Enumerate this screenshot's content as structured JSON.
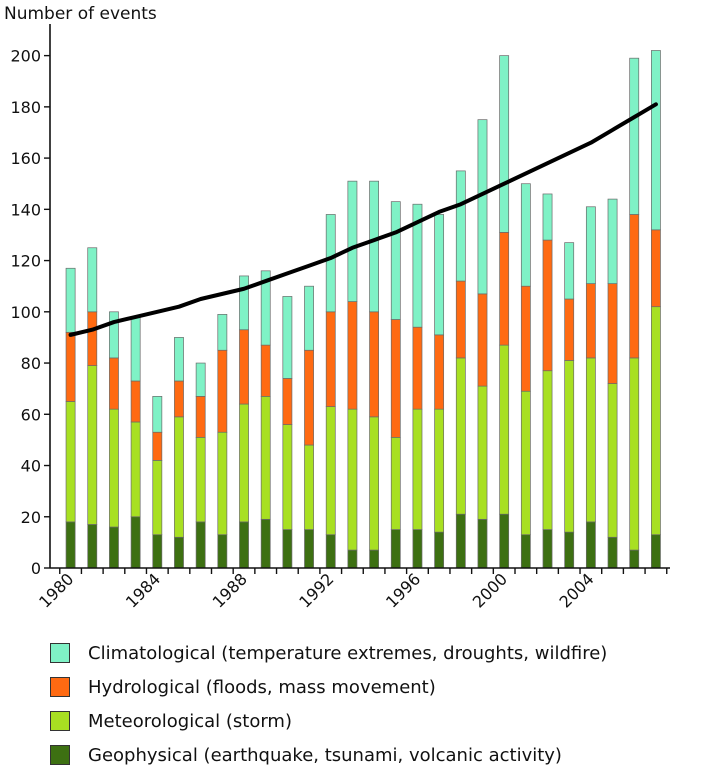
{
  "chart_data": {
    "type": "bar",
    "stacked": true,
    "ylabel": "Number of events",
    "ylim": [
      0,
      210
    ],
    "yticks": [
      0,
      20,
      40,
      60,
      80,
      100,
      120,
      140,
      160,
      180,
      200
    ],
    "xtick_labels": [
      "1980",
      "1984",
      "1988",
      "1992",
      "1996",
      "2000",
      "2004"
    ],
    "categories": [
      "1980",
      "1981",
      "1982",
      "1983",
      "1984",
      "1985",
      "1986",
      "1987",
      "1988",
      "1989",
      "1990",
      "1991",
      "1992",
      "1993",
      "1994",
      "1995",
      "1996",
      "1997",
      "1998",
      "1999",
      "2000",
      "2001",
      "2002",
      "2003",
      "2004",
      "2005",
      "2006",
      "2007"
    ],
    "grid": false,
    "legend_position": "bottom",
    "series": [
      {
        "name": "Geophysical (earthquake, tsunami, volcanic activity)",
        "color": "#3d7012",
        "values": [
          18,
          17,
          16,
          20,
          13,
          12,
          18,
          13,
          18,
          19,
          15,
          15,
          13,
          7,
          7,
          15,
          15,
          14,
          21,
          19,
          21,
          13,
          15,
          14,
          18,
          12,
          7,
          13
        ]
      },
      {
        "name": "Meteorological (storm)",
        "color": "#a8e022",
        "values": [
          47,
          62,
          46,
          37,
          29,
          47,
          33,
          40,
          46,
          48,
          41,
          33,
          50,
          55,
          52,
          36,
          47,
          48,
          61,
          52,
          66,
          56,
          62,
          67,
          64,
          60,
          75,
          89
        ]
      },
      {
        "name": "Hydrological (floods, mass movement)",
        "color": "#ff6a12",
        "values": [
          27,
          21,
          20,
          16,
          11,
          14,
          16,
          32,
          29,
          20,
          18,
          37,
          37,
          42,
          41,
          46,
          32,
          29,
          30,
          36,
          44,
          41,
          51,
          24,
          29,
          39,
          56,
          30
        ]
      },
      {
        "name": "Climatological (temperature extremes, droughts, wildfire)",
        "color": "#7ff2c6",
        "values": [
          25,
          25,
          18,
          25,
          14,
          17,
          13,
          14,
          21,
          29,
          32,
          25,
          38,
          47,
          51,
          46,
          48,
          47,
          43,
          68,
          69,
          40,
          18,
          22,
          30,
          33,
          61,
          70
        ]
      }
    ],
    "trend": {
      "name": "trend",
      "color": "#000000",
      "values": [
        91,
        93,
        96,
        98,
        100,
        102,
        105,
        107,
        109,
        112,
        115,
        118,
        121,
        125,
        128,
        131,
        135,
        139,
        142,
        146,
        150,
        154,
        158,
        162,
        166,
        171,
        176,
        181
      ]
    }
  }
}
